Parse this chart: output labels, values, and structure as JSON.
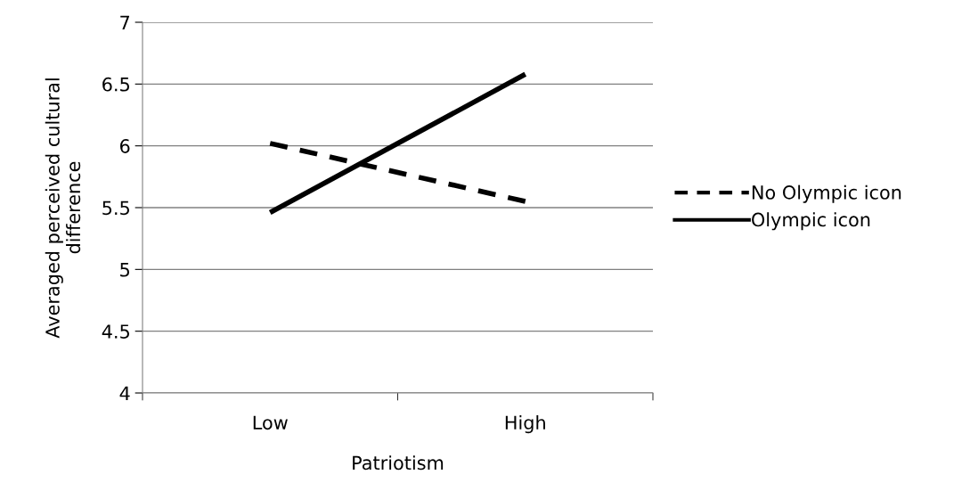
{
  "chart_data": {
    "type": "line",
    "xlabel": "Patriotism",
    "ylabel": "Averaged perceived cultural\ndifference",
    "categories": [
      "Low",
      "High"
    ],
    "series": [
      {
        "name": "No Olympic icon",
        "color": "#000000",
        "values": [
          6.02,
          5.55
        ],
        "line_style": "dashed"
      },
      {
        "name": "Olympic icon",
        "color": "#000000",
        "values": [
          5.46,
          6.58
        ],
        "line_style": "solid"
      }
    ],
    "ylim": [
      4,
      7
    ],
    "yticks": [
      4,
      4.5,
      5,
      5.5,
      6,
      6.5,
      7
    ],
    "grid": "y",
    "legend": "right",
    "marker": "none"
  }
}
